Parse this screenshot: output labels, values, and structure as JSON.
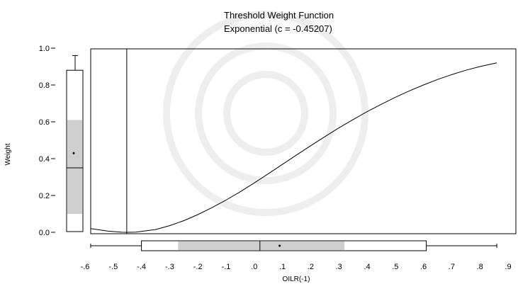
{
  "chart_data": {
    "type": "line",
    "title": "Threshold Weight Function",
    "subtitle": "Exponential (c = -0.45207)",
    "xlabel": "OILR(-1)",
    "ylabel": "Weight",
    "xlim": [
      -0.6,
      0.9
    ],
    "ylim": [
      0.0,
      1.0
    ],
    "x_ticks": [
      ".6",
      ".5",
      ".4",
      ".3",
      ".2",
      ".1",
      ".0",
      ".1",
      ".2",
      ".3",
      ".4",
      ".5",
      ".6",
      ".7",
      ".8",
      ".9"
    ],
    "x_tick_prefix": [
      "-",
      "-",
      "-",
      "-",
      "-",
      "-",
      "",
      "",
      "",
      "",
      "",
      "",
      "",
      "",
      "",
      ""
    ],
    "y_ticks": [
      "0.0",
      "0.2",
      "0.4",
      "0.6",
      "0.8",
      "1.0"
    ],
    "threshold_c": -0.45207,
    "series": [
      {
        "x": [
          -0.58,
          -0.52,
          -0.47,
          -0.45207,
          -0.42,
          -0.35,
          -0.3,
          -0.25,
          -0.2,
          -0.15,
          -0.1,
          -0.05,
          0.0,
          0.05,
          0.1,
          0.15,
          0.2,
          0.25,
          0.3,
          0.35,
          0.4,
          0.45,
          0.5,
          0.55,
          0.6,
          0.65,
          0.7,
          0.75,
          0.8,
          0.86
        ],
        "y": [
          0.02,
          0.007,
          0.0005,
          0.0,
          0.001,
          0.015,
          0.036,
          0.063,
          0.096,
          0.134,
          0.175,
          0.22,
          0.268,
          0.318,
          0.369,
          0.42,
          0.47,
          0.519,
          0.567,
          0.612,
          0.655,
          0.695,
          0.733,
          0.768,
          0.8,
          0.83,
          0.856,
          0.88,
          0.9,
          0.92
        ]
      }
    ],
    "y_boxplot": {
      "whisker_low": 0.0,
      "q1": 0.1,
      "median": 0.35,
      "mean": 0.43,
      "q3": 0.61,
      "whisker_high": 0.96,
      "upper_box_edge": 0.88
    },
    "x_boxplot": {
      "whisker_low": -0.58,
      "q1": -0.4,
      "shade_low": -0.27,
      "median": 0.02,
      "mean": 0.09,
      "shade_high": 0.32,
      "q3": 0.61,
      "whisker_high": 0.86
    },
    "grid": false,
    "legend": "none"
  }
}
